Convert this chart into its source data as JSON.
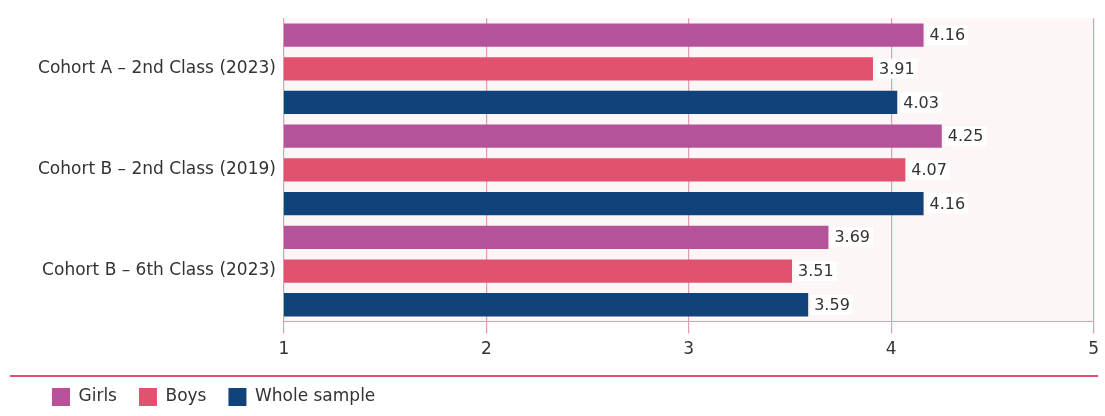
{
  "chart_data": {
    "type": "bar",
    "orientation": "horizontal",
    "categories": [
      "Cohort A – 2nd Class (2023)",
      "Cohort B – 2nd Class (2019)",
      "Cohort B – 6th Class (2023)"
    ],
    "series": [
      {
        "name": "Girls",
        "color": "#b4529a",
        "values": [
          4.16,
          4.25,
          3.69
        ]
      },
      {
        "name": "Boys",
        "color": "#e0526e",
        "values": [
          3.91,
          4.07,
          3.51
        ]
      },
      {
        "name": "Whole sample",
        "color": "#11427a",
        "values": [
          4.03,
          4.16,
          3.59
        ]
      }
    ],
    "xlim": [
      1,
      5
    ],
    "xticks": [
      1,
      2,
      3,
      4,
      5
    ],
    "grid": "x",
    "legend": "bottom left",
    "data_labels": true
  }
}
